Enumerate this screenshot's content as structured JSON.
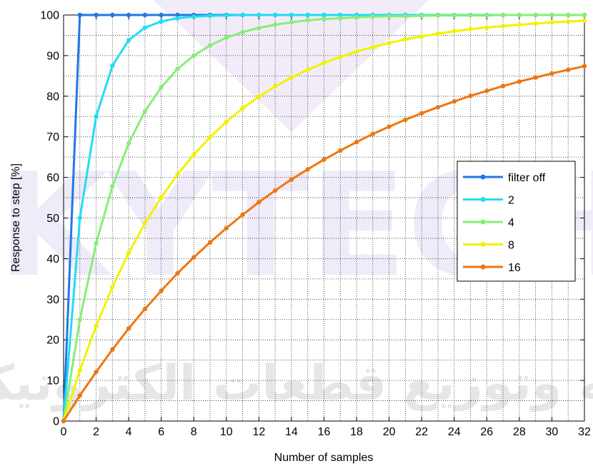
{
  "chart_data": {
    "type": "line",
    "xlabel": "Number of samples",
    "ylabel": "Response to step [%]",
    "xlim": [
      0,
      32
    ],
    "ylim": [
      0,
      100
    ],
    "xticks": [
      0,
      2,
      4,
      6,
      8,
      10,
      12,
      14,
      16,
      18,
      20,
      22,
      24,
      26,
      28,
      30,
      32
    ],
    "yticks": [
      0,
      10,
      20,
      30,
      40,
      50,
      60,
      70,
      80,
      90,
      100
    ],
    "grid": true,
    "legend_position": "right",
    "x": [
      0,
      1,
      2,
      3,
      4,
      5,
      6,
      7,
      8,
      9,
      10,
      11,
      12,
      13,
      14,
      15,
      16,
      17,
      18,
      19,
      20,
      21,
      22,
      23,
      24,
      25,
      26,
      27,
      28,
      29,
      30,
      31,
      32
    ],
    "series": [
      {
        "name": "filter off",
        "color": "#1f77e8",
        "values": [
          0,
          100,
          100,
          100,
          100,
          100,
          100,
          100,
          100,
          100,
          100,
          100,
          100,
          100,
          100,
          100,
          100,
          100,
          100,
          100,
          100,
          100,
          100,
          100,
          100,
          100,
          100,
          100,
          100,
          100,
          100,
          100,
          100
        ]
      },
      {
        "name": "2",
        "color": "#22ddf0",
        "values": [
          0,
          50,
          75,
          87.5,
          93.8,
          96.9,
          98.4,
          99.2,
          99.6,
          99.8,
          99.9,
          100,
          100,
          100,
          100,
          100,
          100,
          100,
          100,
          100,
          100,
          100,
          100,
          100,
          100,
          100,
          100,
          100,
          100,
          100,
          100,
          100,
          100
        ]
      },
      {
        "name": "4",
        "color": "#88ee77",
        "values": [
          0,
          25,
          43.8,
          57.8,
          68.4,
          76.3,
          82.2,
          86.7,
          90,
          92.5,
          94.4,
          95.8,
          96.8,
          97.6,
          98.2,
          98.7,
          99,
          99.2,
          99.4,
          99.6,
          99.7,
          99.7,
          99.8,
          99.9,
          99.9,
          99.9,
          99.9,
          100,
          100,
          100,
          100,
          100,
          100
        ]
      },
      {
        "name": "8",
        "color": "#f2f200",
        "values": [
          0,
          12.5,
          23.4,
          33,
          41.4,
          48.7,
          55.1,
          60.7,
          65.6,
          69.9,
          73.7,
          77,
          79.9,
          82.4,
          84.6,
          86.5,
          88.2,
          89.7,
          91,
          92.1,
          93.1,
          94,
          94.7,
          95.4,
          96,
          96.5,
          96.9,
          97.3,
          97.6,
          97.9,
          98.2,
          98.4,
          98.6
        ]
      },
      {
        "name": "16",
        "color": "#ee7711",
        "values": [
          0,
          6.3,
          12.1,
          17.6,
          22.8,
          27.6,
          32.1,
          36.4,
          40.3,
          44,
          47.5,
          50.8,
          53.9,
          56.8,
          59.5,
          62,
          64.4,
          66.6,
          68.7,
          70.7,
          72.5,
          74.2,
          75.8,
          77.3,
          78.7,
          80.1,
          81.3,
          82.5,
          83.6,
          84.6,
          85.6,
          86.5,
          87.4
        ]
      }
    ]
  },
  "watermark": {
    "latin_text": "KYTECH",
    "arabic_text": "تهیه وتوزیع قطعات الکترونیک"
  }
}
